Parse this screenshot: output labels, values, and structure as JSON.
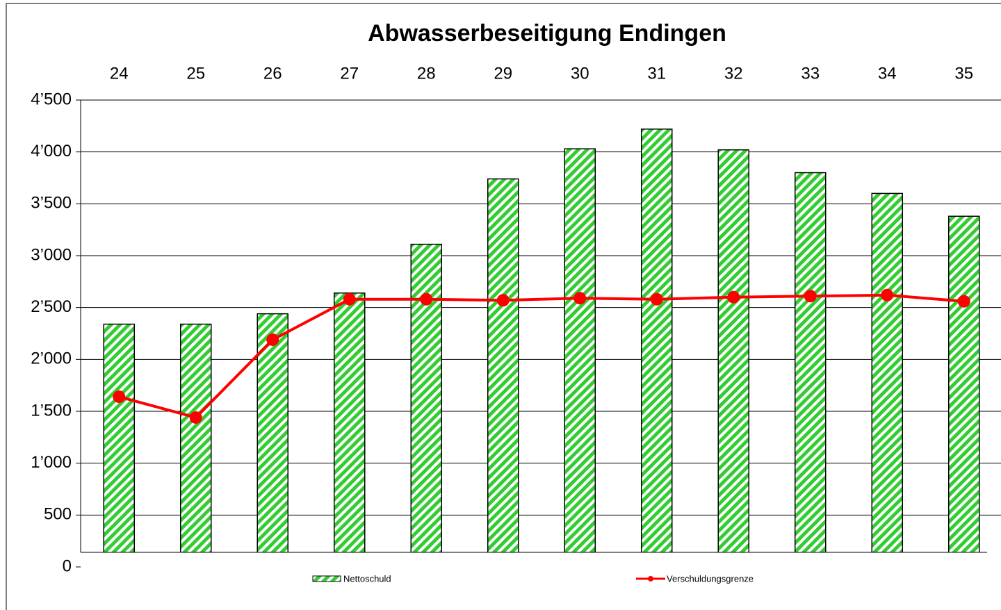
{
  "chart_data": {
    "type": "bar",
    "title": "Abwasserbeseitigung Endingen",
    "categories": [
      "24",
      "25",
      "26",
      "27",
      "28",
      "29",
      "30",
      "31",
      "32",
      "33",
      "34",
      "35"
    ],
    "series": [
      {
        "name": "Nettoschuld",
        "type": "bar",
        "color": "#33cc33",
        "values": [
          2340,
          2340,
          2440,
          2640,
          3110,
          3740,
          4030,
          4220,
          4020,
          3800,
          3600,
          3380
        ]
      },
      {
        "name": "Verschuldungsgrenze",
        "type": "line",
        "color": "#ff0000",
        "values": [
          1640,
          1440,
          2190,
          2580,
          2580,
          2570,
          2590,
          2580,
          2600,
          2610,
          2620,
          2560
        ]
      }
    ],
    "ylim": [
      0,
      4500
    ],
    "yticks": [
      0,
      500,
      {
        "value": 1000,
        "label": "1’000"
      },
      {
        "value": 1500,
        "label": "1’500"
      },
      {
        "value": 2000,
        "label": "2’000"
      },
      {
        "value": 2500,
        "label": "2’500"
      },
      {
        "value": 3000,
        "label": "3’000"
      },
      {
        "value": 3500,
        "label": "3’500"
      },
      {
        "value": 4000,
        "label": "4’000"
      },
      {
        "value": 4500,
        "label": "4’500"
      }
    ],
    "grid": true
  }
}
